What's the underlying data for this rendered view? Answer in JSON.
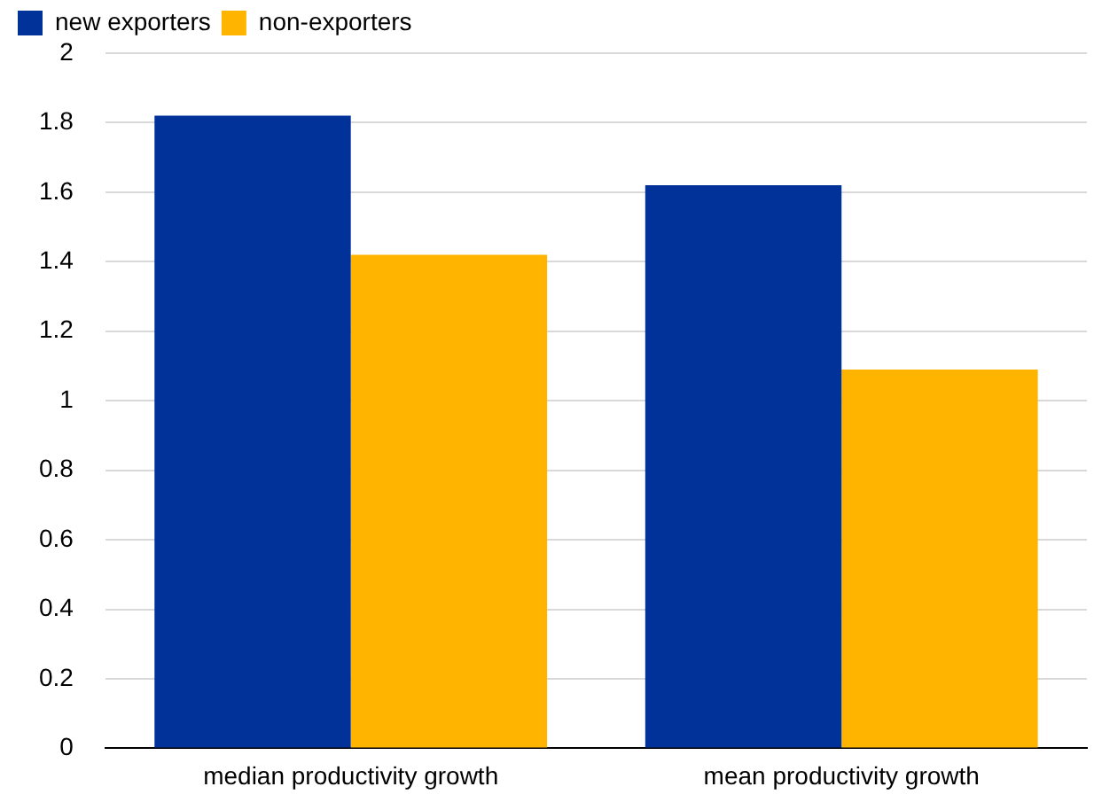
{
  "chart_data": {
    "type": "bar",
    "categories": [
      "median productivity growth",
      "mean productivity growth"
    ],
    "series": [
      {
        "name": "new exporters",
        "color": "#003299",
        "values": [
          1.82,
          1.62
        ]
      },
      {
        "name": "non-exporters",
        "color": "#ffb400",
        "values": [
          1.42,
          1.09
        ]
      }
    ],
    "ylim": [
      0,
      2
    ],
    "yticks": [
      0,
      0.2,
      0.4,
      0.6,
      0.8,
      1,
      1.2,
      1.4,
      1.6,
      1.8,
      2
    ],
    "grid": "y",
    "legend": "top left"
  }
}
